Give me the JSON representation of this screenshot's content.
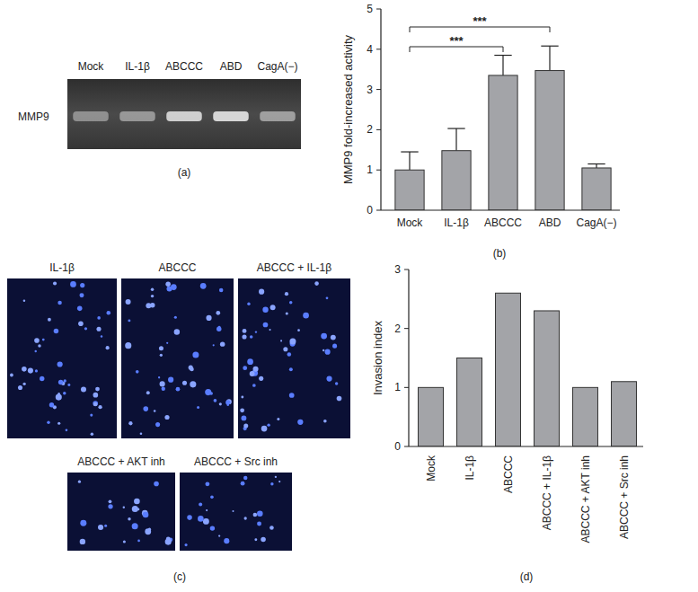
{
  "chart_data": [
    {
      "type": "bar",
      "panel": "(b)",
      "y_label": "MMP9 fold-increased activity",
      "categories": [
        "Mock",
        "IL-1β",
        "ABCCC",
        "ABD",
        "CagA(−)"
      ],
      "values": [
        1.0,
        1.48,
        3.35,
        3.47,
        1.05
      ],
      "errors": [
        0.45,
        0.55,
        0.5,
        0.61,
        0.1
      ],
      "color": "#a3a4a8",
      "ylim": [
        0,
        5
      ],
      "yticks": [
        0,
        1,
        2,
        3,
        4,
        5
      ],
      "grid": false,
      "significance": [
        {
          "from": "Mock",
          "to": "ABCCC",
          "label": "***"
        },
        {
          "from": "Mock",
          "to": "ABD",
          "label": "***"
        }
      ]
    },
    {
      "type": "bar",
      "panel": "(d)",
      "y_label": "Invasion index",
      "categories": [
        "Mock",
        "IL-1β",
        "ABCCC",
        "ABCCC + IL-1β",
        "ABCCC + AKT inh",
        "ABCCC + Src inh"
      ],
      "values": [
        1.0,
        1.5,
        2.6,
        2.3,
        1.0,
        1.1
      ],
      "color": "#a3a4a8",
      "ylim": [
        0,
        3
      ],
      "yticks": [
        0,
        1,
        2,
        3
      ],
      "grid": false
    }
  ],
  "gel": {
    "panel": "(a)",
    "row_label": "MMP9",
    "lanes": [
      "Mock",
      "IL-1β",
      "ABCCC",
      "ABD",
      "CagA(−)"
    ],
    "band_intensity": [
      0.45,
      0.5,
      0.85,
      0.9,
      0.55
    ]
  },
  "micrographs": {
    "panel": "(c)",
    "labels": [
      "IL-1β",
      "ABCCC",
      "ABCCC + IL-1β",
      "ABCCC + AKT inh",
      "ABCCC + Src inh"
    ]
  }
}
